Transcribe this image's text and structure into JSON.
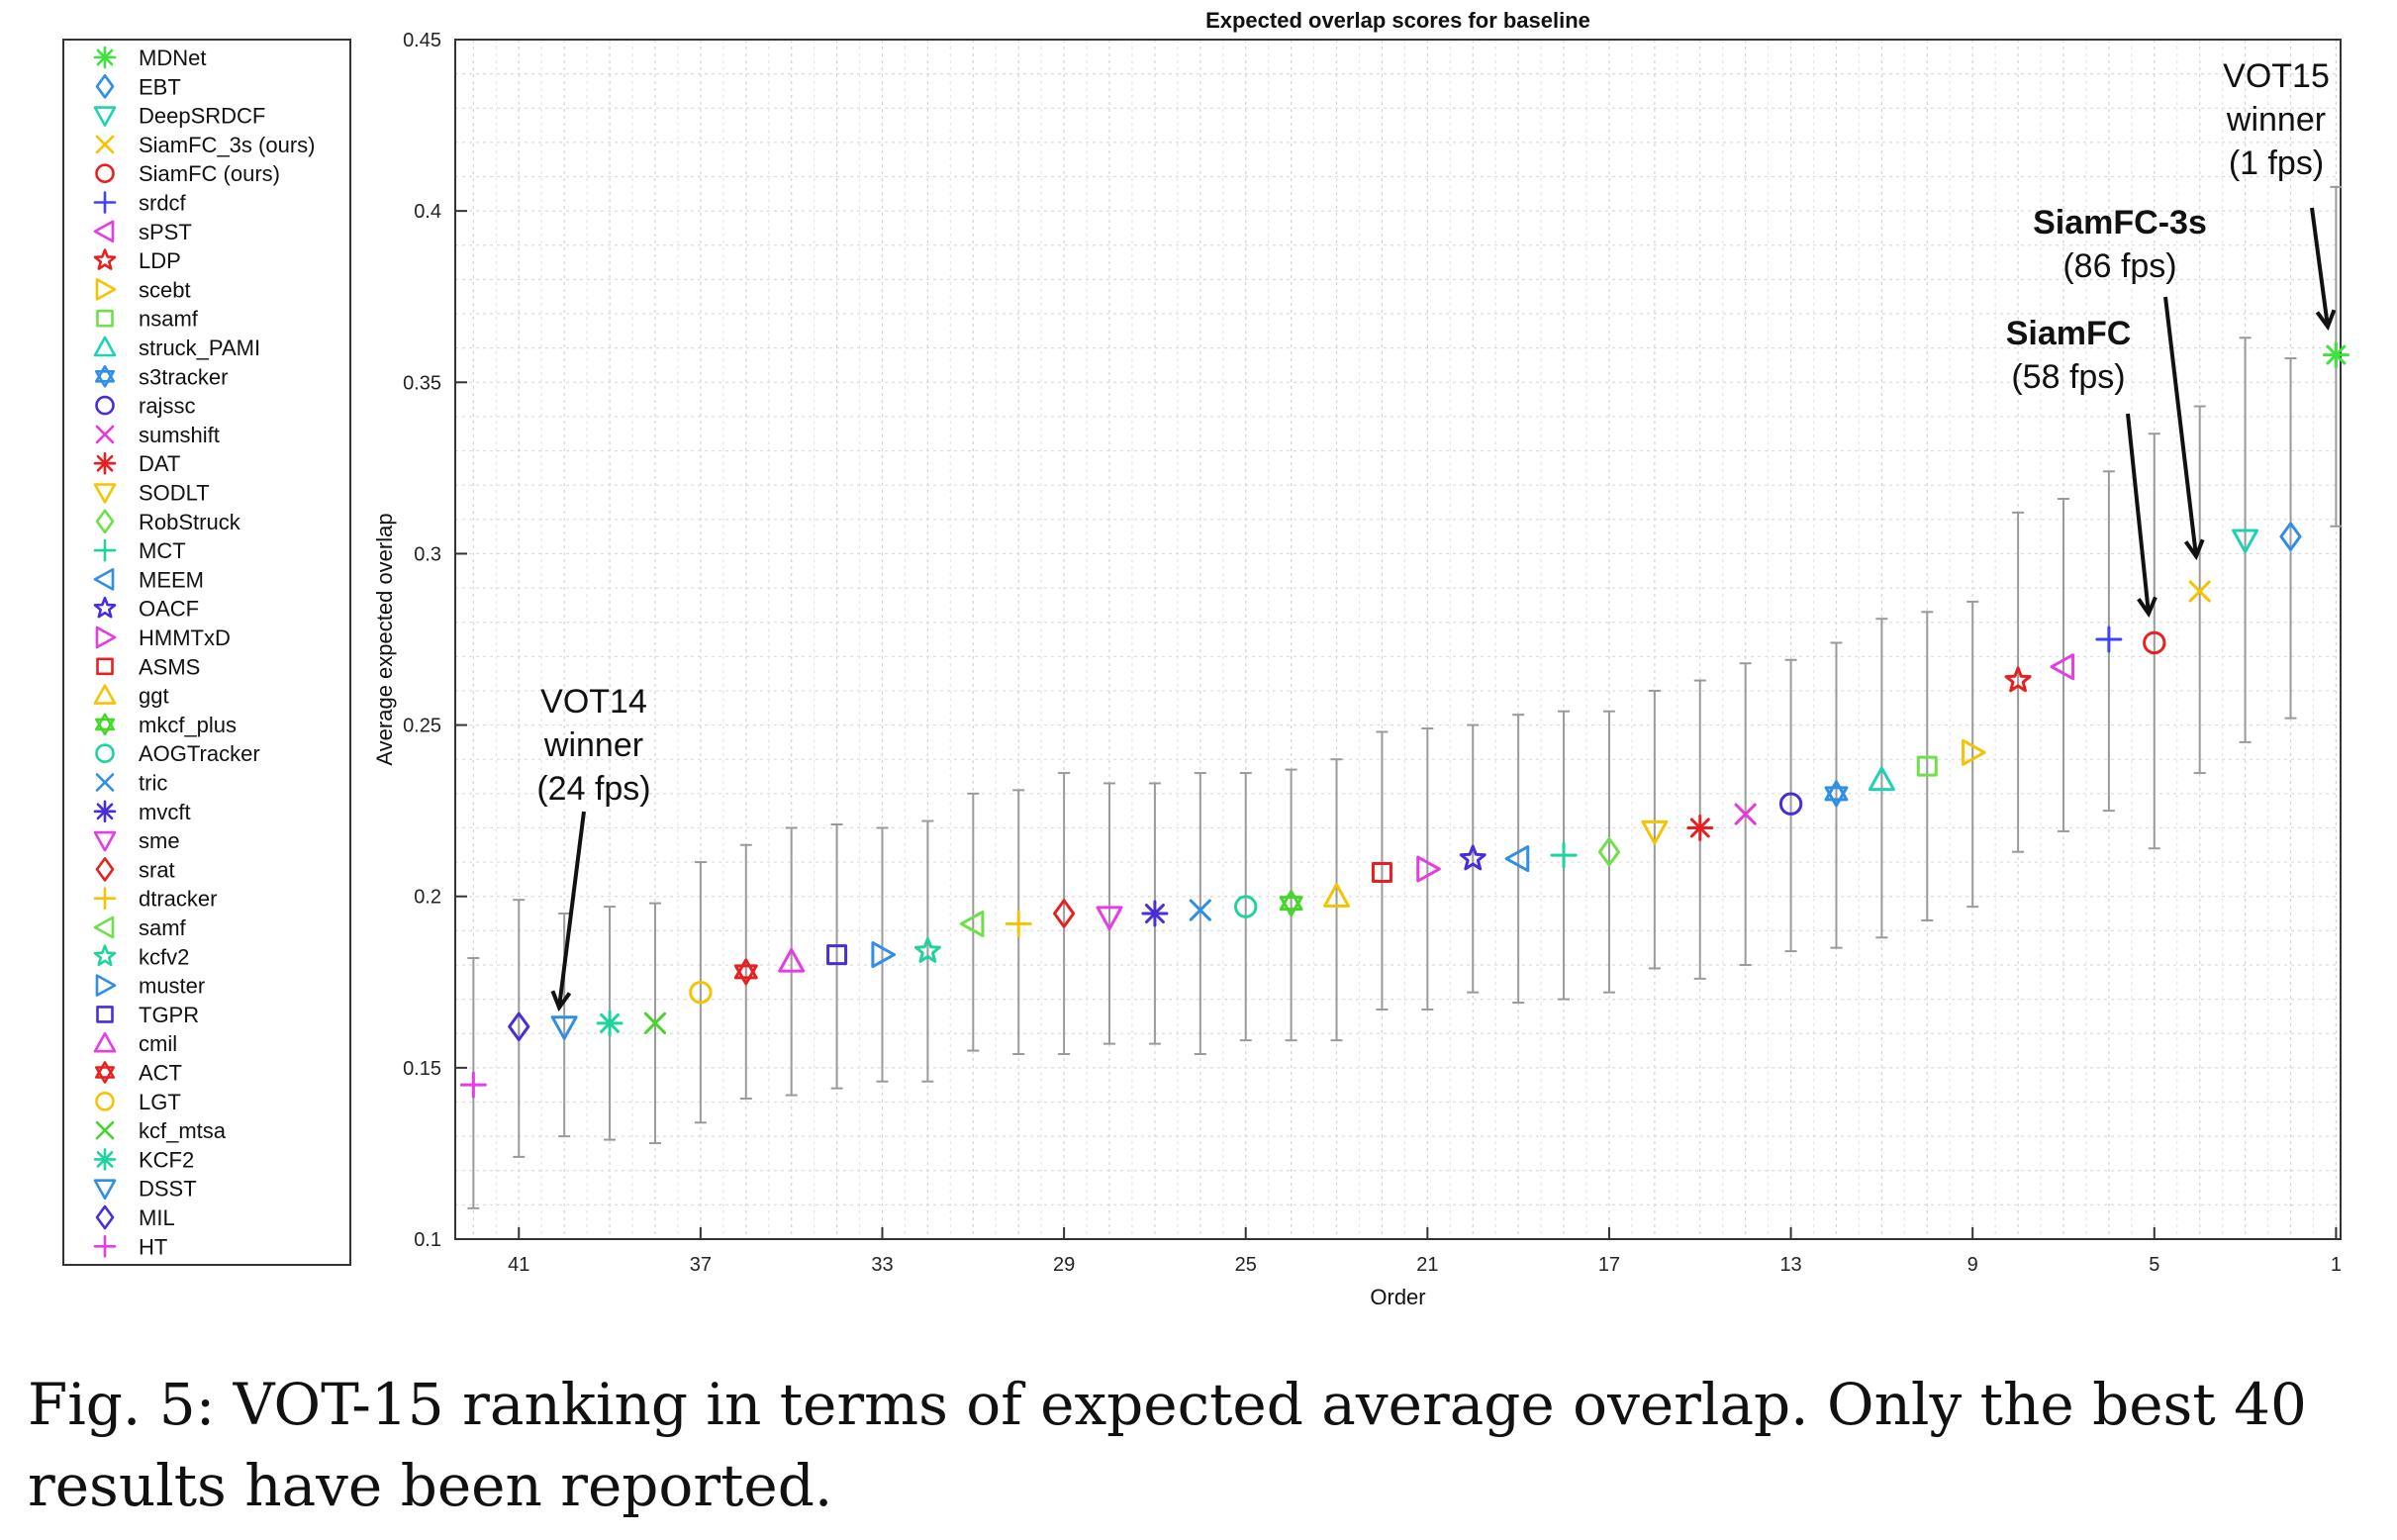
{
  "chart_data": {
    "type": "scatter",
    "title": "Expected overlap scores for baseline",
    "xlabel": "Order",
    "ylabel": "Average expected overlap",
    "ylim": [
      0.1,
      0.45
    ],
    "xlim": [
      42.4,
      0.9
    ],
    "x_reversed": true,
    "y_ticks": [
      "0.1",
      "0.15",
      "0.2",
      "0.25",
      "0.3",
      "0.35",
      "0.4",
      "0.45"
    ],
    "x_ticks": [
      "41",
      "37",
      "33",
      "29",
      "25",
      "21",
      "17",
      "13",
      "9",
      "5",
      "1"
    ],
    "grid": true,
    "error_bars": true,
    "legend_position": "outside-left",
    "series": [
      {
        "name": "MDNet",
        "order": 1,
        "value": 0.358,
        "low": 0.308,
        "high": 0.407,
        "marker": "asterisk",
        "color": "#3fe23f"
      },
      {
        "name": "EBT",
        "order": 2,
        "value": 0.305,
        "low": 0.252,
        "high": 0.357,
        "marker": "diamond",
        "color": "#2f8ee6"
      },
      {
        "name": "DeepSRDCF",
        "order": 3,
        "value": 0.304,
        "low": 0.245,
        "high": 0.363,
        "marker": "triangle-down",
        "color": "#1ed3b3"
      },
      {
        "name": "SiamFC_3s (ours)",
        "order": 4,
        "value": 0.289,
        "low": 0.236,
        "high": 0.343,
        "marker": "x",
        "color": "#f5c400"
      },
      {
        "name": "SiamFC (ours)",
        "order": 5,
        "value": 0.274,
        "low": 0.214,
        "high": 0.335,
        "marker": "circle",
        "color": "#e82020"
      },
      {
        "name": "srdcf",
        "order": 6,
        "value": 0.275,
        "low": 0.225,
        "high": 0.324,
        "marker": "plus",
        "color": "#4040ff"
      },
      {
        "name": "sPST",
        "order": 7,
        "value": 0.267,
        "low": 0.219,
        "high": 0.316,
        "marker": "triangle-left",
        "color": "#e53ce3"
      },
      {
        "name": "LDP",
        "order": 8,
        "value": 0.263,
        "low": 0.213,
        "high": 0.312,
        "marker": "pentagram",
        "color": "#e62020"
      },
      {
        "name": "scebt",
        "order": 9,
        "value": 0.242,
        "low": 0.197,
        "high": 0.286,
        "marker": "triangle-right",
        "color": "#f5c400"
      },
      {
        "name": "nsamf",
        "order": 10,
        "value": 0.238,
        "low": 0.193,
        "high": 0.283,
        "marker": "square",
        "color": "#6de04a"
      },
      {
        "name": "struck_PAMI",
        "order": 11,
        "value": 0.234,
        "low": 0.188,
        "high": 0.281,
        "marker": "triangle-up",
        "color": "#1ed3b3"
      },
      {
        "name": "s3tracker",
        "order": 12,
        "value": 0.23,
        "low": 0.185,
        "high": 0.274,
        "marker": "hexagram",
        "color": "#2f8ee6"
      },
      {
        "name": "rajssc",
        "order": 13,
        "value": 0.227,
        "low": 0.184,
        "high": 0.269,
        "marker": "circle",
        "color": "#4a2cd8"
      },
      {
        "name": "sumshift",
        "order": 14,
        "value": 0.224,
        "low": 0.18,
        "high": 0.268,
        "marker": "x",
        "color": "#e83ad6"
      },
      {
        "name": "DAT",
        "order": 15,
        "value": 0.22,
        "low": 0.176,
        "high": 0.263,
        "marker": "asterisk",
        "color": "#e62020"
      },
      {
        "name": "SODLT",
        "order": 16,
        "value": 0.219,
        "low": 0.179,
        "high": 0.26,
        "marker": "triangle-down",
        "color": "#f5c400"
      },
      {
        "name": "RobStruck",
        "order": 17,
        "value": 0.213,
        "low": 0.172,
        "high": 0.254,
        "marker": "diamond",
        "color": "#6de04a"
      },
      {
        "name": "MCT",
        "order": 18,
        "value": 0.212,
        "low": 0.17,
        "high": 0.254,
        "marker": "plus",
        "color": "#1ed3a0"
      },
      {
        "name": "MEEM",
        "order": 19,
        "value": 0.211,
        "low": 0.169,
        "high": 0.253,
        "marker": "triangle-left",
        "color": "#2f8ee6"
      },
      {
        "name": "OACF",
        "order": 20,
        "value": 0.211,
        "low": 0.172,
        "high": 0.25,
        "marker": "pentagram",
        "color": "#4a2cd8"
      },
      {
        "name": "HMMTxD",
        "order": 21,
        "value": 0.208,
        "low": 0.167,
        "high": 0.249,
        "marker": "triangle-right",
        "color": "#e53ce3"
      },
      {
        "name": "ASMS",
        "order": 22,
        "value": 0.207,
        "low": 0.167,
        "high": 0.248,
        "marker": "square",
        "color": "#e62020"
      },
      {
        "name": "ggt",
        "order": 23,
        "value": 0.2,
        "low": 0.158,
        "high": 0.24,
        "marker": "triangle-up",
        "color": "#f5c400"
      },
      {
        "name": "mkcf_plus",
        "order": 24,
        "value": 0.198,
        "low": 0.158,
        "high": 0.237,
        "marker": "hexagram",
        "color": "#46d62a"
      },
      {
        "name": "AOGTracker",
        "order": 25,
        "value": 0.197,
        "low": 0.158,
        "high": 0.236,
        "marker": "circle",
        "color": "#1ed3a0"
      },
      {
        "name": "tric",
        "order": 26,
        "value": 0.196,
        "low": 0.154,
        "high": 0.236,
        "marker": "x",
        "color": "#2f8ee6"
      },
      {
        "name": "mvcft",
        "order": 27,
        "value": 0.195,
        "low": 0.157,
        "high": 0.233,
        "marker": "asterisk",
        "color": "#4a2cd8"
      },
      {
        "name": "sme",
        "order": 28,
        "value": 0.194,
        "low": 0.157,
        "high": 0.233,
        "marker": "triangle-down",
        "color": "#e53ce3"
      },
      {
        "name": "srat",
        "order": 29,
        "value": 0.195,
        "low": 0.154,
        "high": 0.236,
        "marker": "diamond",
        "color": "#e62020"
      },
      {
        "name": "dtracker",
        "order": 30,
        "value": 0.192,
        "low": 0.154,
        "high": 0.231,
        "marker": "plus",
        "color": "#f5c400"
      },
      {
        "name": "samf",
        "order": 31,
        "value": 0.192,
        "low": 0.155,
        "high": 0.23,
        "marker": "triangle-left",
        "color": "#6de04a"
      },
      {
        "name": "kcfv2",
        "order": 32,
        "value": 0.184,
        "low": 0.146,
        "high": 0.222,
        "marker": "pentagram",
        "color": "#1ed3a0"
      },
      {
        "name": "muster",
        "order": 33,
        "value": 0.183,
        "low": 0.146,
        "high": 0.22,
        "marker": "triangle-right",
        "color": "#2f8ee6"
      },
      {
        "name": "TGPR",
        "order": 34,
        "value": 0.183,
        "low": 0.144,
        "high": 0.221,
        "marker": "square",
        "color": "#4a2cd8"
      },
      {
        "name": "cmil",
        "order": 35,
        "value": 0.181,
        "low": 0.142,
        "high": 0.22,
        "marker": "triangle-up",
        "color": "#e53ce3"
      },
      {
        "name": "ACT",
        "order": 36,
        "value": 0.178,
        "low": 0.141,
        "high": 0.215,
        "marker": "hexagram",
        "color": "#e62020"
      },
      {
        "name": "LGT",
        "order": 37,
        "value": 0.172,
        "low": 0.134,
        "high": 0.21,
        "marker": "circle",
        "color": "#f5c400"
      },
      {
        "name": "kcf_mtsa",
        "order": 38,
        "value": 0.163,
        "low": 0.128,
        "high": 0.198,
        "marker": "x",
        "color": "#46d62a"
      },
      {
        "name": "KCF2",
        "order": 39,
        "value": 0.163,
        "low": 0.129,
        "high": 0.197,
        "marker": "asterisk",
        "color": "#1ed3a0"
      },
      {
        "name": "DSST",
        "order": 40,
        "value": 0.162,
        "low": 0.13,
        "high": 0.195,
        "marker": "triangle-down",
        "color": "#2f8ee6"
      },
      {
        "name": "MIL",
        "order": 41,
        "value": 0.162,
        "low": 0.124,
        "high": 0.199,
        "marker": "diamond",
        "color": "#4a2cd8"
      },
      {
        "name": "HT",
        "order": 42,
        "value": 0.145,
        "low": 0.109,
        "high": 0.182,
        "marker": "plus",
        "color": "#e53ce3"
      }
    ],
    "annotations": [
      {
        "lines": [
          "VOT15",
          "winner",
          "(1 fps)"
        ],
        "bold": false,
        "points_to": 1
      },
      {
        "lines": [
          "SiamFC-3s",
          "(86 fps)"
        ],
        "bold": true,
        "points_to": 4
      },
      {
        "lines": [
          "SiamFC",
          "(58 fps)"
        ],
        "bold": true,
        "points_to": 5
      },
      {
        "lines": [
          "VOT14",
          "winner",
          "(24 fps)"
        ],
        "bold": false,
        "points_to": 40
      }
    ]
  },
  "caption": "Fig. 5: VOT-15 ranking in terms of expected average overlap. Only the best 40 results have been reported."
}
